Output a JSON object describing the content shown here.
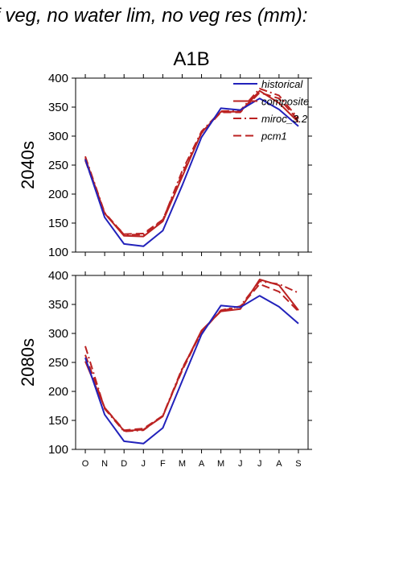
{
  "header": {
    "title": "f veg, no water lim, no veg res (mm):",
    "scenario": "A1B"
  },
  "colors": {
    "historical": "#2222bb",
    "model": "#bb2222",
    "axis": "#000000"
  },
  "chart_data": [
    {
      "type": "line",
      "ylabel": "2040s",
      "ylim": [
        100,
        400
      ],
      "yticks": [
        "100",
        "150",
        "200",
        "250",
        "300",
        "350",
        "400"
      ],
      "categories": [
        "O",
        "N",
        "D",
        "J",
        "F",
        "M",
        "A",
        "M",
        "J",
        "J",
        "A",
        "S"
      ],
      "legend": {
        "placement": "top-right",
        "entries": [
          "historical",
          "composite",
          "miroc_3.2",
          "pcm1"
        ]
      },
      "series": [
        {
          "name": "historical",
          "dash": "solid",
          "values": [
            260,
            160,
            114,
            110,
            137,
            215,
            298,
            348,
            345,
            365,
            346,
            317
          ]
        },
        {
          "name": "composite",
          "dash": "solid",
          "values": [
            262,
            167,
            128,
            127,
            153,
            230,
            306,
            342,
            342,
            378,
            357,
            324
          ]
        },
        {
          "name": "miroc_3.2",
          "dash": "dashdot",
          "values": [
            265,
            168,
            130,
            130,
            155,
            240,
            308,
            343,
            344,
            382,
            370,
            330
          ]
        },
        {
          "name": "pcm1",
          "dash": "dash",
          "values": [
            258,
            166,
            131,
            132,
            156,
            235,
            305,
            341,
            341,
            375,
            365,
            327
          ]
        }
      ]
    },
    {
      "type": "line",
      "ylabel": "2080s",
      "ylim": [
        100,
        400
      ],
      "yticks": [
        "100",
        "150",
        "200",
        "250",
        "300",
        "350",
        "400"
      ],
      "categories": [
        "O",
        "N",
        "D",
        "J",
        "F",
        "M",
        "A",
        "M",
        "J",
        "J",
        "A",
        "S"
      ],
      "series": [
        {
          "name": "historical",
          "dash": "solid",
          "values": [
            258,
            160,
            114,
            110,
            137,
            218,
            298,
            348,
            345,
            365,
            346,
            317
          ]
        },
        {
          "name": "composite",
          "dash": "solid",
          "values": [
            252,
            172,
            132,
            134,
            157,
            238,
            305,
            338,
            342,
            393,
            383,
            340
          ]
        },
        {
          "name": "miroc_3.2",
          "dash": "dashdot",
          "values": [
            278,
            170,
            131,
            133,
            158,
            240,
            302,
            340,
            347,
            390,
            385,
            370
          ]
        },
        {
          "name": "pcm1",
          "dash": "dash",
          "values": [
            263,
            172,
            133,
            136,
            158,
            236,
            303,
            339,
            346,
            385,
            372,
            338
          ]
        }
      ]
    }
  ]
}
